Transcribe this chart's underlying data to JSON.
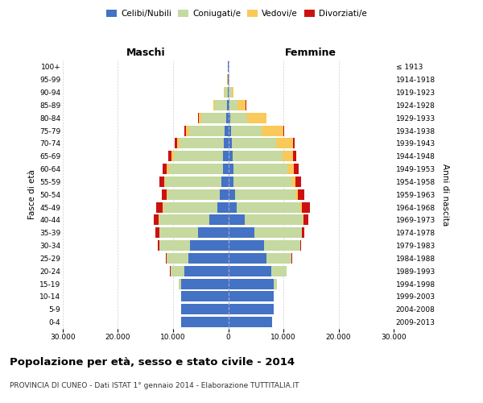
{
  "age_groups": [
    "0-4",
    "5-9",
    "10-14",
    "15-19",
    "20-24",
    "25-29",
    "30-34",
    "35-39",
    "40-44",
    "45-49",
    "50-54",
    "55-59",
    "60-64",
    "65-69",
    "70-74",
    "75-79",
    "80-84",
    "85-89",
    "90-94",
    "95-99",
    "100+"
  ],
  "birth_years": [
    "2009-2013",
    "2004-2008",
    "1999-2003",
    "1994-1998",
    "1989-1993",
    "1984-1988",
    "1979-1983",
    "1974-1978",
    "1969-1973",
    "1964-1968",
    "1959-1963",
    "1954-1958",
    "1949-1953",
    "1944-1948",
    "1939-1943",
    "1934-1938",
    "1929-1933",
    "1924-1928",
    "1919-1923",
    "1914-1918",
    "≤ 1913"
  ],
  "male": {
    "celibi": [
      8500,
      8500,
      8500,
      8500,
      8000,
      7200,
      7000,
      5500,
      3500,
      2000,
      1500,
      1200,
      1000,
      900,
      800,
      600,
      400,
      200,
      80,
      40,
      20
    ],
    "coniugati": [
      20,
      50,
      100,
      500,
      2500,
      4000,
      5500,
      7000,
      9000,
      9800,
      9500,
      10200,
      9800,
      9000,
      8000,
      6500,
      4500,
      2200,
      600,
      100,
      30
    ],
    "vedovi": [
      0,
      0,
      0,
      5,
      10,
      20,
      30,
      50,
      80,
      100,
      150,
      200,
      300,
      400,
      500,
      600,
      500,
      300,
      100,
      20,
      5
    ],
    "divorziati": [
      0,
      0,
      0,
      10,
      50,
      100,
      300,
      600,
      900,
      1200,
      900,
      900,
      800,
      600,
      400,
      200,
      100,
      60,
      20,
      5,
      2
    ]
  },
  "female": {
    "nubili": [
      8000,
      8200,
      8200,
      8200,
      7800,
      7000,
      6500,
      4800,
      3000,
      1600,
      1200,
      1000,
      900,
      800,
      700,
      500,
      400,
      200,
      100,
      40,
      20
    ],
    "coniugate": [
      20,
      50,
      100,
      600,
      2800,
      4500,
      6500,
      8500,
      10500,
      11500,
      11000,
      10500,
      9800,
      9000,
      8000,
      5500,
      3000,
      1500,
      500,
      100,
      30
    ],
    "vedove": [
      0,
      0,
      0,
      5,
      10,
      20,
      40,
      60,
      100,
      200,
      400,
      700,
      1200,
      2000,
      3000,
      4000,
      3500,
      1500,
      300,
      30,
      5
    ],
    "divorziate": [
      0,
      0,
      0,
      10,
      30,
      80,
      200,
      500,
      900,
      1500,
      1200,
      1000,
      900,
      600,
      400,
      200,
      80,
      50,
      20,
      5,
      2
    ]
  },
  "colors": {
    "celibi": "#4472C4",
    "coniugati": "#C5D9A0",
    "vedovi": "#F9C95A",
    "divorziati": "#CC1111"
  },
  "title": "Popolazione per età, sesso e stato civile - 2014",
  "subtitle": "PROVINCIA DI CUNEO - Dati ISTAT 1° gennaio 2014 - Elaborazione TUTTITALIA.IT",
  "xlabel_left": "Maschi",
  "xlabel_right": "Femmine",
  "ylabel_left": "Fasce di età",
  "ylabel_right": "Anni di nascita",
  "xlim": 30000,
  "bg_color": "#ffffff",
  "grid_color": "#cccccc"
}
